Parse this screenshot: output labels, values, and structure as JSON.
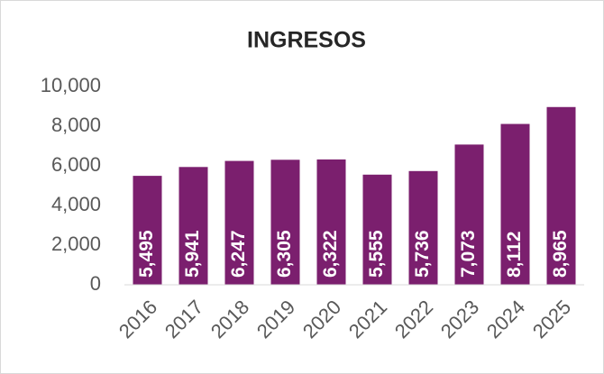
{
  "chart_data": {
    "type": "bar",
    "title": "INGRESOS",
    "categories": [
      "2016",
      "2017",
      "2018",
      "2019",
      "2020",
      "2021",
      "2022",
      "2023",
      "2024",
      "2025"
    ],
    "values": [
      5495,
      5941,
      6247,
      6305,
      6322,
      5555,
      5736,
      7073,
      8112,
      8965
    ],
    "value_labels": [
      "5,495",
      "5,941",
      "6,247",
      "6,305",
      "6,322",
      "5,555",
      "5,736",
      "7,073",
      "8,112",
      "8,965"
    ],
    "color": "#7b1f6e",
    "ylim": [
      0,
      10000
    ],
    "yticks": [
      0,
      {
        "value": 2000,
        "label": "2,000"
      },
      {
        "value": 4000,
        "label": "4,000"
      },
      {
        "value": 6000,
        "label": "6,000"
      },
      {
        "value": 8000,
        "label": "8,000"
      },
      {
        "value": 10000,
        "label": "10,000"
      }
    ],
    "grid": false
  }
}
